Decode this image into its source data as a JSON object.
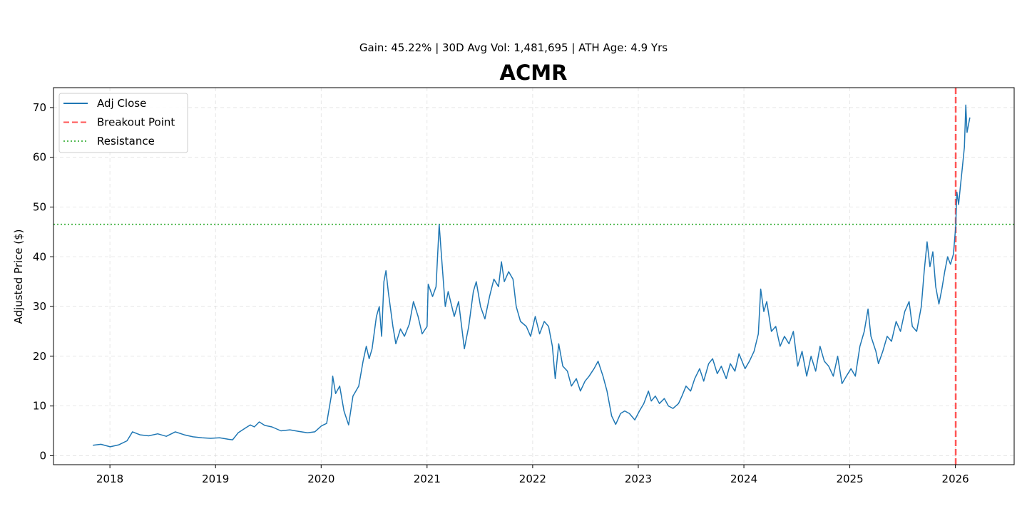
{
  "chart_data": {
    "type": "line",
    "title": "ACMR",
    "subtitle": "Gain: 45.22% | 30D Avg Vol: 1,481,695 | ATH Age: 4.9 Yrs",
    "xlabel": "",
    "ylabel": "Adjusted Price ($)",
    "x_ticks": [
      "2018",
      "2019",
      "2020",
      "2021",
      "2022",
      "2023",
      "2024",
      "2025",
      "2026"
    ],
    "y_ticks": [
      0,
      10,
      20,
      30,
      40,
      50,
      60,
      70
    ],
    "xlim": [
      "2017-06-20",
      "2026-07-23"
    ],
    "ylim": [
      -1.8,
      74
    ],
    "grid": true,
    "legend_position": "upper-left",
    "series": [
      {
        "name": "Adj Close",
        "color": "#1f77b4",
        "style": "solid",
        "points": [
          [
            "2017-11-03",
            2.1
          ],
          [
            "2017-12-01",
            2.3
          ],
          [
            "2018-01-02",
            1.8
          ],
          [
            "2018-02-01",
            2.2
          ],
          [
            "2018-03-01",
            3.0
          ],
          [
            "2018-03-20",
            4.8
          ],
          [
            "2018-04-15",
            4.2
          ],
          [
            "2018-05-15",
            4.0
          ],
          [
            "2018-06-15",
            4.4
          ],
          [
            "2018-07-15",
            3.9
          ],
          [
            "2018-08-15",
            4.8
          ],
          [
            "2018-09-15",
            4.2
          ],
          [
            "2018-10-15",
            3.8
          ],
          [
            "2018-11-15",
            3.6
          ],
          [
            "2018-12-15",
            3.5
          ],
          [
            "2019-01-15",
            3.6
          ],
          [
            "2019-02-15",
            3.3
          ],
          [
            "2019-03-01",
            3.2
          ],
          [
            "2019-03-20",
            4.6
          ],
          [
            "2019-04-15",
            5.6
          ],
          [
            "2019-05-01",
            6.2
          ],
          [
            "2019-05-15",
            5.8
          ],
          [
            "2019-06-01",
            6.8
          ],
          [
            "2019-06-20",
            6.1
          ],
          [
            "2019-07-15",
            5.8
          ],
          [
            "2019-08-15",
            5.0
          ],
          [
            "2019-09-15",
            5.2
          ],
          [
            "2019-10-15",
            4.9
          ],
          [
            "2019-11-15",
            4.6
          ],
          [
            "2019-12-10",
            4.8
          ],
          [
            "2020-01-02",
            6.0
          ],
          [
            "2020-01-20",
            6.5
          ],
          [
            "2020-02-05",
            12.0
          ],
          [
            "2020-02-10",
            16.0
          ],
          [
            "2020-02-20",
            12.5
          ],
          [
            "2020-03-05",
            14.0
          ],
          [
            "2020-03-20",
            9.0
          ],
          [
            "2020-04-05",
            6.2
          ],
          [
            "2020-04-20",
            12.0
          ],
          [
            "2020-05-10",
            14.0
          ],
          [
            "2020-05-25",
            19.0
          ],
          [
            "2020-06-05",
            22.0
          ],
          [
            "2020-06-15",
            19.5
          ],
          [
            "2020-06-25",
            21.5
          ],
          [
            "2020-07-10",
            28.0
          ],
          [
            "2020-07-20",
            30.0
          ],
          [
            "2020-07-28",
            24.0
          ],
          [
            "2020-08-05",
            35.0
          ],
          [
            "2020-08-12",
            37.2
          ],
          [
            "2020-08-20",
            33.0
          ],
          [
            "2020-09-05",
            26.0
          ],
          [
            "2020-09-15",
            22.5
          ],
          [
            "2020-10-01",
            25.5
          ],
          [
            "2020-10-15",
            24.0
          ],
          [
            "2020-11-01",
            26.5
          ],
          [
            "2020-11-15",
            31.0
          ],
          [
            "2020-12-01",
            28.0
          ],
          [
            "2020-12-15",
            24.5
          ],
          [
            "2021-01-01",
            26.0
          ],
          [
            "2021-01-05",
            34.5
          ],
          [
            "2021-01-20",
            32.0
          ],
          [
            "2021-02-01",
            34.0
          ],
          [
            "2021-02-12",
            46.5
          ],
          [
            "2021-02-20",
            40.0
          ],
          [
            "2021-03-05",
            30.0
          ],
          [
            "2021-03-15",
            33.0
          ],
          [
            "2021-04-05",
            28.0
          ],
          [
            "2021-04-20",
            31.0
          ],
          [
            "2021-05-10",
            21.5
          ],
          [
            "2021-05-25",
            26.0
          ],
          [
            "2021-06-10",
            33.0
          ],
          [
            "2021-06-20",
            35.0
          ],
          [
            "2021-07-05",
            30.0
          ],
          [
            "2021-07-20",
            27.5
          ],
          [
            "2021-08-05",
            32.0
          ],
          [
            "2021-08-20",
            35.5
          ],
          [
            "2021-09-05",
            34.0
          ],
          [
            "2021-09-15",
            39.0
          ],
          [
            "2021-09-25",
            35.0
          ],
          [
            "2021-10-10",
            37.0
          ],
          [
            "2021-10-25",
            35.5
          ],
          [
            "2021-11-05",
            30.0
          ],
          [
            "2021-11-20",
            27.0
          ],
          [
            "2021-12-10",
            26.0
          ],
          [
            "2021-12-25",
            24.0
          ],
          [
            "2022-01-10",
            28.0
          ],
          [
            "2022-01-25",
            24.5
          ],
          [
            "2022-02-10",
            27.0
          ],
          [
            "2022-02-25",
            26.0
          ],
          [
            "2022-03-10",
            22.0
          ],
          [
            "2022-03-20",
            15.5
          ],
          [
            "2022-04-01",
            22.5
          ],
          [
            "2022-04-15",
            18.0
          ],
          [
            "2022-05-01",
            17.0
          ],
          [
            "2022-05-15",
            14.0
          ],
          [
            "2022-06-01",
            15.5
          ],
          [
            "2022-06-15",
            13.0
          ],
          [
            "2022-07-01",
            15.0
          ],
          [
            "2022-07-15",
            16.0
          ],
          [
            "2022-08-01",
            17.5
          ],
          [
            "2022-08-15",
            19.0
          ],
          [
            "2022-09-01",
            16.0
          ],
          [
            "2022-09-15",
            13.0
          ],
          [
            "2022-10-01",
            8.0
          ],
          [
            "2022-10-15",
            6.3
          ],
          [
            "2022-11-01",
            8.5
          ],
          [
            "2022-11-15",
            9.0
          ],
          [
            "2022-12-01",
            8.5
          ],
          [
            "2022-12-20",
            7.2
          ],
          [
            "2023-01-05",
            9.0
          ],
          [
            "2023-01-20",
            10.5
          ],
          [
            "2023-02-05",
            13.0
          ],
          [
            "2023-02-15",
            11.0
          ],
          [
            "2023-03-01",
            12.0
          ],
          [
            "2023-03-15",
            10.5
          ],
          [
            "2023-04-01",
            11.5
          ],
          [
            "2023-04-15",
            10.0
          ],
          [
            "2023-05-01",
            9.5
          ],
          [
            "2023-05-20",
            10.5
          ],
          [
            "2023-06-01",
            12.0
          ],
          [
            "2023-06-15",
            14.0
          ],
          [
            "2023-07-01",
            13.0
          ],
          [
            "2023-07-15",
            15.5
          ],
          [
            "2023-08-01",
            17.5
          ],
          [
            "2023-08-15",
            15.0
          ],
          [
            "2023-09-01",
            18.5
          ],
          [
            "2023-09-15",
            19.5
          ],
          [
            "2023-10-01",
            16.5
          ],
          [
            "2023-10-15",
            18.0
          ],
          [
            "2023-11-01",
            15.5
          ],
          [
            "2023-11-15",
            18.5
          ],
          [
            "2023-12-01",
            17.0
          ],
          [
            "2023-12-15",
            20.5
          ],
          [
            "2024-01-05",
            17.5
          ],
          [
            "2024-01-20",
            19.0
          ],
          [
            "2024-02-05",
            21.0
          ],
          [
            "2024-02-20",
            24.5
          ],
          [
            "2024-02-28",
            33.5
          ],
          [
            "2024-03-10",
            29.0
          ],
          [
            "2024-03-20",
            31.0
          ],
          [
            "2024-04-05",
            25.0
          ],
          [
            "2024-04-20",
            26.0
          ],
          [
            "2024-05-05",
            22.0
          ],
          [
            "2024-05-20",
            24.0
          ],
          [
            "2024-06-05",
            22.5
          ],
          [
            "2024-06-20",
            25.0
          ],
          [
            "2024-07-05",
            18.0
          ],
          [
            "2024-07-20",
            21.0
          ],
          [
            "2024-08-05",
            16.0
          ],
          [
            "2024-08-20",
            20.0
          ],
          [
            "2024-09-05",
            17.0
          ],
          [
            "2024-09-20",
            22.0
          ],
          [
            "2024-10-05",
            19.0
          ],
          [
            "2024-10-20",
            18.0
          ],
          [
            "2024-11-05",
            16.0
          ],
          [
            "2024-11-20",
            20.0
          ],
          [
            "2024-12-05",
            14.5
          ],
          [
            "2024-12-20",
            16.0
          ],
          [
            "2025-01-05",
            17.5
          ],
          [
            "2025-01-20",
            16.0
          ],
          [
            "2025-02-05",
            22.0
          ],
          [
            "2025-02-20",
            25.0
          ],
          [
            "2025-03-05",
            29.5
          ],
          [
            "2025-03-15",
            24.0
          ],
          [
            "2025-04-01",
            21.0
          ],
          [
            "2025-04-10",
            18.5
          ],
          [
            "2025-04-25",
            21.0
          ],
          [
            "2025-05-10",
            24.0
          ],
          [
            "2025-05-25",
            23.0
          ],
          [
            "2025-06-10",
            27.0
          ],
          [
            "2025-06-25",
            25.0
          ],
          [
            "2025-07-10",
            29.0
          ],
          [
            "2025-07-25",
            31.0
          ],
          [
            "2025-08-05",
            26.0
          ],
          [
            "2025-08-20",
            25.0
          ],
          [
            "2025-09-05",
            30.0
          ],
          [
            "2025-09-15",
            37.0
          ],
          [
            "2025-09-25",
            43.0
          ],
          [
            "2025-10-05",
            38.0
          ],
          [
            "2025-10-15",
            41.0
          ],
          [
            "2025-10-25",
            34.0
          ],
          [
            "2025-11-05",
            30.5
          ],
          [
            "2025-11-15",
            33.5
          ],
          [
            "2025-11-25",
            37.0
          ],
          [
            "2025-12-05",
            40.0
          ],
          [
            "2025-12-15",
            38.5
          ],
          [
            "2025-12-25",
            40.5
          ],
          [
            "2026-01-02",
            46.0
          ],
          [
            "2026-01-06",
            53.0
          ],
          [
            "2026-01-12",
            50.5
          ],
          [
            "2026-01-18",
            54.0
          ],
          [
            "2026-01-25",
            58.0
          ],
          [
            "2026-02-01",
            62.0
          ],
          [
            "2026-02-06",
            70.5
          ],
          [
            "2026-02-10",
            65.0
          ],
          [
            "2026-02-15",
            66.5
          ],
          [
            "2026-02-20",
            68.0
          ]
        ]
      },
      {
        "name": "Breakout Point",
        "color": "#ff5555",
        "style": "dashed",
        "x": "2026-01-02"
      },
      {
        "name": "Resistance",
        "color": "#55bb55",
        "style": "dotted",
        "y": 46.5
      }
    ]
  }
}
